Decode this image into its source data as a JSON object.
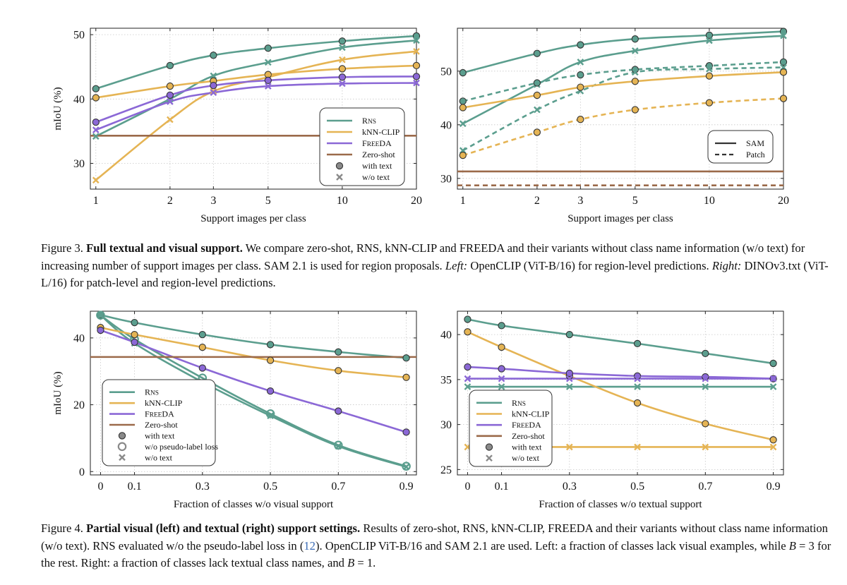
{
  "figure3": {
    "caption_label": "Figure 3.",
    "caption_title": "Full textual and visual support.",
    "caption_body_1": "We compare zero-shot, RNS, kNN-CLIP and FREEDA and their variants without class name information (w/o text) for increasing number of support images per class. SAM 2.1 is used for region proposals.",
    "caption_left_label": "Left:",
    "caption_left_body": "OpenCLIP (ViT-B/16) for region-level predictions.",
    "caption_right_label": "Right:",
    "caption_right_body": "DINOv3.txt (ViT-L/16) for patch-level and region-level predictions."
  },
  "figure4": {
    "caption_label": "Figure 4.",
    "caption_title": "Partial visual (left) and textual (right) support settings.",
    "caption_body_1": "Results of zero-shot, RNS, kNN-CLIP, FREEDA and their variants without class name information (w/o text). RNS evaluated w/o the pseudo-label loss in (",
    "caption_cite": "12",
    "caption_body_2": "). OpenCLIP ViT-B/16 and SAM 2.1 are used. Left: a fraction of classes lack visual examples, while",
    "caption_math_1": "B",
    "caption_body_3": "= 3 for the rest. Right: a fraction of classes lack textual class names, and",
    "caption_math_2": "B",
    "caption_body_4": "= 1."
  },
  "colors": {
    "rns": "#5b9e8e",
    "knn": "#e5b454",
    "freeda": "#8b68d6",
    "zeroshot": "#9b6a4a"
  },
  "chart_data": [
    {
      "id": "fig3_left",
      "type": "line",
      "xlabel": "Support images per class",
      "ylabel": "mIoU (%)",
      "x": [
        1,
        2,
        3,
        5,
        10,
        20
      ],
      "xticks": [
        "1",
        "2",
        "3",
        "5",
        "10",
        "20"
      ],
      "yticks": [
        30,
        40,
        50
      ],
      "xscale": "log",
      "xlim": [
        0.95,
        20
      ],
      "ylim": [
        26,
        51
      ],
      "grid": true,
      "legend_position": "center-right",
      "legend": [
        {
          "label": "RNS",
          "kind": "line",
          "color_key": "rns"
        },
        {
          "label": "kNN-CLIP",
          "kind": "line",
          "color_key": "knn"
        },
        {
          "label": "FREEDA",
          "kind": "line",
          "color_key": "freeda"
        },
        {
          "label": "Zero-shot",
          "kind": "line",
          "color_key": "zeroshot"
        },
        {
          "label": "with text",
          "kind": "circle"
        },
        {
          "label": "w/o text",
          "kind": "cross"
        }
      ],
      "series": [
        {
          "name": "RNS",
          "color_key": "rns",
          "marker": "circle",
          "dash": false,
          "values": [
            41.6,
            45.2,
            46.8,
            47.9,
            49.0,
            49.8
          ]
        },
        {
          "name": "RNS",
          "color_key": "rns",
          "marker": "cross",
          "dash": false,
          "values": [
            34.2,
            40.0,
            43.6,
            45.7,
            48.0,
            49.1
          ]
        },
        {
          "name": "kNN-CLIP",
          "color_key": "knn",
          "marker": "circle",
          "dash": false,
          "values": [
            40.2,
            42.0,
            42.8,
            43.8,
            44.7,
            45.2
          ]
        },
        {
          "name": "kNN-CLIP",
          "color_key": "knn",
          "marker": "cross",
          "dash": false,
          "values": [
            27.4,
            36.8,
            41.2,
            43.4,
            46.1,
            47.4
          ]
        },
        {
          "name": "FREEDA",
          "color_key": "freeda",
          "marker": "circle",
          "dash": false,
          "values": [
            36.4,
            40.6,
            42.1,
            42.9,
            43.4,
            43.5
          ]
        },
        {
          "name": "FREEDA",
          "color_key": "freeda",
          "marker": "cross",
          "dash": false,
          "values": [
            35.2,
            39.6,
            41.0,
            42.0,
            42.4,
            42.5
          ]
        },
        {
          "name": "Zero-shot",
          "color_key": "zeroshot",
          "marker": "none",
          "dash": false,
          "hline": 34.3
        }
      ]
    },
    {
      "id": "fig3_right",
      "type": "line",
      "xlabel": "Support images per class",
      "ylabel": "",
      "x": [
        1,
        2,
        3,
        5,
        10,
        20
      ],
      "xticks": [
        "1",
        "2",
        "3",
        "5",
        "10",
        "20"
      ],
      "yticks": [
        30,
        40,
        50
      ],
      "xscale": "log",
      "xlim": [
        0.95,
        20
      ],
      "ylim": [
        28,
        58
      ],
      "grid": true,
      "legend_position": "lower-right",
      "legend": [
        {
          "label": "SAM",
          "kind": "solid"
        },
        {
          "label": "Patch",
          "kind": "dashed"
        }
      ],
      "series": [
        {
          "name": "RNS",
          "color_key": "rns",
          "marker": "circle",
          "dash": false,
          "values": [
            49.7,
            53.3,
            54.9,
            56.0,
            56.7,
            57.4
          ]
        },
        {
          "name": "RNS",
          "color_key": "rns",
          "marker": "cross",
          "dash": false,
          "values": [
            40.2,
            47.5,
            51.7,
            53.8,
            55.7,
            56.6
          ]
        },
        {
          "name": "RNS",
          "color_key": "rns",
          "marker": "circle",
          "dash": true,
          "values": [
            44.4,
            47.8,
            49.3,
            50.3,
            51.0,
            51.7
          ]
        },
        {
          "name": "RNS",
          "color_key": "rns",
          "marker": "cross",
          "dash": true,
          "values": [
            35.2,
            42.8,
            46.3,
            49.8,
            50.4,
            50.7
          ]
        },
        {
          "name": "kNN-CLIP",
          "color_key": "knn",
          "marker": "circle",
          "dash": false,
          "values": [
            43.2,
            45.5,
            47.0,
            48.1,
            49.1,
            49.8
          ]
        },
        {
          "name": "kNN-CLIP",
          "color_key": "knn",
          "marker": "circle",
          "dash": true,
          "values": [
            34.3,
            38.6,
            41.0,
            42.8,
            44.1,
            44.9
          ]
        },
        {
          "name": "Zero-shot",
          "color_key": "zeroshot",
          "marker": "none",
          "dash": false,
          "hline": 31.3
        },
        {
          "name": "Zero-shot",
          "color_key": "zeroshot",
          "marker": "none",
          "dash": true,
          "hline": 28.7
        }
      ]
    },
    {
      "id": "fig4_left",
      "type": "line",
      "xlabel": "Fraction of classes w/o visual support",
      "ylabel": "mIoU (%)",
      "x": [
        0,
        0.1,
        0.3,
        0.5,
        0.7,
        0.9
      ],
      "xticks": [
        "0",
        "0.1",
        "0.3",
        "0.5",
        "0.7",
        "0.9"
      ],
      "yticks": [
        0,
        20,
        40
      ],
      "xscale": "linear",
      "xlim": [
        -0.03,
        0.93
      ],
      "ylim": [
        -1,
        48
      ],
      "grid": true,
      "legend_position": "lower-left",
      "legend": [
        {
          "label": "RNS",
          "kind": "line",
          "color_key": "rns"
        },
        {
          "label": "kNN-CLIP",
          "kind": "line",
          "color_key": "knn"
        },
        {
          "label": "FREEDA",
          "kind": "line",
          "color_key": "freeda"
        },
        {
          "label": "Zero-shot",
          "kind": "line",
          "color_key": "zeroshot"
        },
        {
          "label": "with text",
          "kind": "circle"
        },
        {
          "label": "w/o pseudo-label loss",
          "kind": "ring"
        },
        {
          "label": "w/o text",
          "kind": "cross"
        }
      ],
      "series": [
        {
          "name": "RNS",
          "color_key": "rns",
          "marker": "circle",
          "dash": false,
          "values": [
            46.9,
            44.6,
            41.0,
            38.0,
            35.8,
            34.0
          ]
        },
        {
          "name": "RNS",
          "color_key": "rns",
          "marker": "ring",
          "dash": false,
          "values": [
            46.8,
            39.6,
            28.0,
            17.3,
            7.9,
            1.6
          ]
        },
        {
          "name": "RNS",
          "color_key": "rns",
          "marker": "cross",
          "dash": false,
          "values": [
            46.8,
            38.4,
            26.8,
            16.7,
            7.6,
            1.4
          ]
        },
        {
          "name": "kNN-CLIP",
          "color_key": "knn",
          "marker": "circle",
          "dash": false,
          "values": [
            43.1,
            41.0,
            37.2,
            33.3,
            30.2,
            28.2
          ]
        },
        {
          "name": "FREEDA",
          "color_key": "freeda",
          "marker": "circle",
          "dash": false,
          "values": [
            42.3,
            38.7,
            31.0,
            24.1,
            18.1,
            11.8
          ]
        },
        {
          "name": "Zero-shot",
          "color_key": "zeroshot",
          "marker": "none",
          "dash": false,
          "hline": 34.3
        }
      ]
    },
    {
      "id": "fig4_right",
      "type": "line",
      "xlabel": "Fraction of classes w/o textual support",
      "ylabel": "",
      "x": [
        0,
        0.1,
        0.3,
        0.5,
        0.7,
        0.9
      ],
      "xticks": [
        "0",
        "0.1",
        "0.3",
        "0.5",
        "0.7",
        "0.9"
      ],
      "yticks": [
        25,
        30,
        35,
        40
      ],
      "xscale": "linear",
      "xlim": [
        -0.03,
        0.93
      ],
      "ylim": [
        24.4,
        42.6
      ],
      "grid": true,
      "legend_position": "lower-left",
      "legend": [
        {
          "label": "RNS",
          "kind": "line",
          "color_key": "rns"
        },
        {
          "label": "kNN-CLIP",
          "kind": "line",
          "color_key": "knn"
        },
        {
          "label": "FREEDA",
          "kind": "line",
          "color_key": "freeda"
        },
        {
          "label": "Zero-shot",
          "kind": "line",
          "color_key": "zeroshot"
        },
        {
          "label": "with text",
          "kind": "circle"
        },
        {
          "label": "w/o text",
          "kind": "cross"
        }
      ],
      "series": [
        {
          "name": "RNS",
          "color_key": "rns",
          "marker": "circle",
          "dash": false,
          "values": [
            41.7,
            41.0,
            40.0,
            39.0,
            37.9,
            36.8
          ]
        },
        {
          "name": "RNS",
          "color_key": "rns",
          "marker": "cross",
          "dash": false,
          "values": [
            34.2,
            34.2,
            34.2,
            34.2,
            34.2,
            34.2
          ]
        },
        {
          "name": "kNN-CLIP",
          "color_key": "knn",
          "marker": "circle",
          "dash": false,
          "values": [
            40.3,
            38.6,
            35.4,
            32.4,
            30.1,
            28.3
          ]
        },
        {
          "name": "kNN-CLIP",
          "color_key": "knn",
          "marker": "cross",
          "dash": false,
          "values": [
            27.5,
            27.5,
            27.5,
            27.5,
            27.5,
            27.5
          ]
        },
        {
          "name": "FREEDA",
          "color_key": "freeda",
          "marker": "circle",
          "dash": false,
          "values": [
            36.4,
            36.2,
            35.7,
            35.4,
            35.3,
            35.1
          ]
        },
        {
          "name": "FREEDA",
          "color_key": "freeda",
          "marker": "cross",
          "dash": false,
          "values": [
            35.1,
            35.1,
            35.1,
            35.1,
            35.1,
            35.1
          ]
        }
      ]
    }
  ]
}
